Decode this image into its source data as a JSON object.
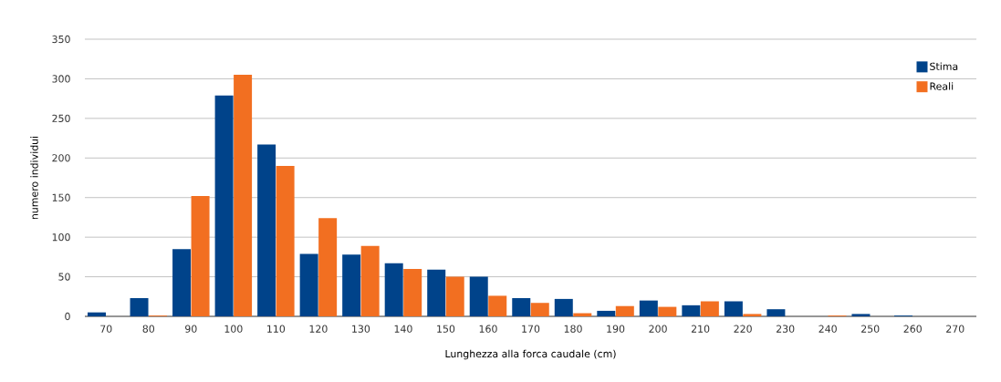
{
  "chart_data": {
    "type": "bar",
    "xlabel": "Lunghezza alla forca caudale (cm)",
    "ylabel": "numero individui",
    "categories": [
      "70",
      "80",
      "90",
      "100",
      "110",
      "120",
      "130",
      "140",
      "150",
      "160",
      "170",
      "180",
      "190",
      "200",
      "210",
      "220",
      "230",
      "240",
      "250",
      "260",
      "270"
    ],
    "series": [
      {
        "name": "Stima",
        "color": "#00438a",
        "values": [
          5,
          23,
          85,
          279,
          217,
          79,
          78,
          67,
          59,
          50,
          23,
          22,
          7,
          20,
          14,
          19,
          9,
          0,
          3,
          1,
          0
        ]
      },
      {
        "name": "Reali",
        "color": "#f26f21",
        "values": [
          0,
          1,
          152,
          305,
          190,
          124,
          89,
          60,
          50,
          26,
          17,
          4,
          13,
          12,
          19,
          3,
          0,
          1,
          0,
          0,
          0
        ]
      }
    ],
    "ylim": [
      0,
      350
    ],
    "yticks": [
      0,
      50,
      100,
      150,
      200,
      250,
      300,
      350
    ],
    "grid": "y",
    "legend": "top right"
  }
}
